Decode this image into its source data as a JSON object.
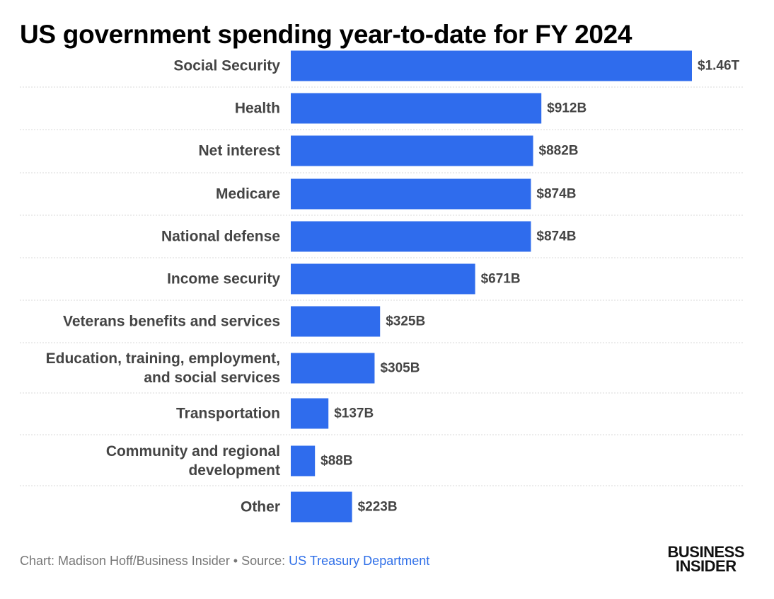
{
  "chart_data": {
    "type": "bar",
    "orientation": "horizontal",
    "title": "US government spending year-to-date for FY 2024",
    "unit": "billions of USD",
    "categories": [
      [
        "Social Security"
      ],
      [
        "Health"
      ],
      [
        "Net interest"
      ],
      [
        "Medicare"
      ],
      [
        "National defense"
      ],
      [
        "Income security"
      ],
      [
        "Veterans benefits and services"
      ],
      [
        "Education, training, employment,",
        "and social services"
      ],
      [
        "Transportation"
      ],
      [
        "Community and regional",
        "development"
      ],
      [
        "Other"
      ]
    ],
    "values": [
      1460,
      912,
      882,
      874,
      874,
      671,
      325,
      305,
      137,
      88,
      223
    ],
    "value_labels": [
      "$1.46T",
      "$912B",
      "$882B",
      "$874B",
      "$874B",
      "$671B",
      "$325B",
      "$305B",
      "$137B",
      "$88B",
      "$223B"
    ],
    "xlim": [
      0,
      1460
    ],
    "bar_color": "#2f6ced",
    "gridlines": "dotted row separators",
    "xlabel": "",
    "ylabel": ""
  },
  "footer": {
    "credit": "Chart: Madison Hoff/Business Insider • Source: ",
    "source": "US Treasury Department"
  },
  "brand": {
    "line1": "BUSINESS",
    "line2": "INSIDER"
  },
  "colors": {
    "bar": "#2f6ced",
    "label": "#444444",
    "link": "#2f6fe8",
    "separator": "#d8d8d8"
  }
}
